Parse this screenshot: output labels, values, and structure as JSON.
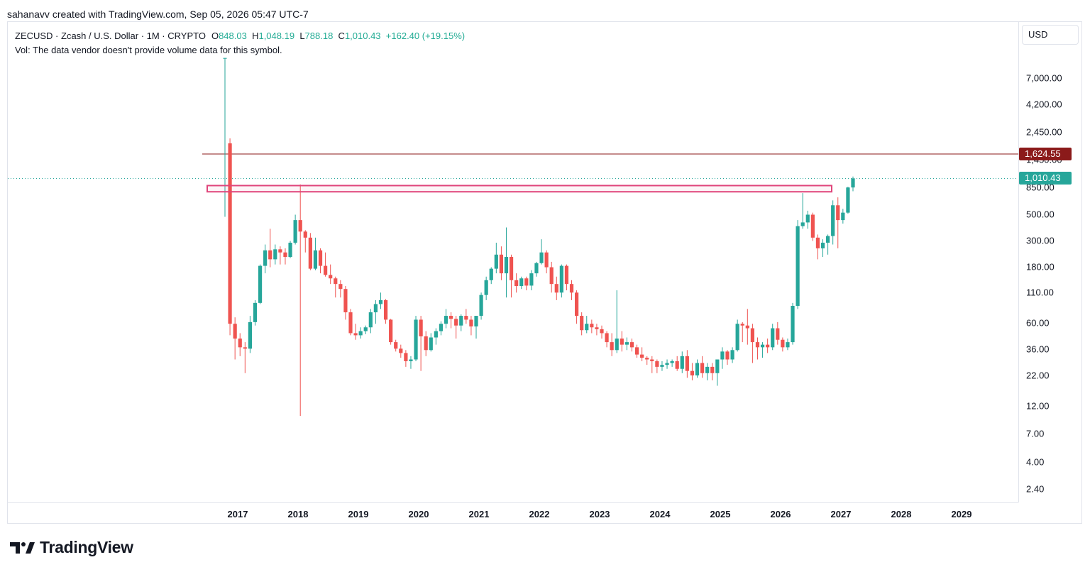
{
  "header": {
    "created_by": "sahanavv created with TradingView.com, Sep 05, 2026 05:47 UTC-7"
  },
  "legend": {
    "symbol": "ZECUSD · Zcash / U.S. Dollar · 1M · CRYPTO",
    "o_label": "O",
    "o_value": "848.03",
    "h_label": "H",
    "h_value": "1,048.19",
    "l_label": "L",
    "l_value": "788.18",
    "c_label": "C",
    "c_value": "1,010.43",
    "change": "+162.40 (+19.15%)",
    "volume_note": "Vol: The data vendor doesn't provide volume data for this symbol."
  },
  "price_axis": {
    "currency": "USD",
    "ticks": [
      "7,000.00",
      "4,200.00",
      "2,450.00",
      "1,450.00",
      "850.00",
      "500.00",
      "300.00",
      "180.00",
      "110.00",
      "60.00",
      "36.00",
      "22.00",
      "12.00",
      "7.00",
      "4.00",
      "2.40"
    ]
  },
  "badges": {
    "resistance": {
      "text": "1,624.55",
      "color": "#8b1a1a"
    },
    "last": {
      "text": "1,010.43",
      "color": "#26a69a"
    }
  },
  "time_axis": {
    "years": [
      "2017",
      "2018",
      "2019",
      "2020",
      "2021",
      "2022",
      "2023",
      "2024",
      "2025",
      "2026",
      "2027",
      "2028",
      "2029"
    ]
  },
  "brand": {
    "name": "TradingView",
    "logo": "tradingview-logo-icon"
  },
  "colors": {
    "up": "#26a69a",
    "down": "#ef5350",
    "resistance_line": "#8b1a1a",
    "zone": "#e0457b",
    "last_line": "#26a69a"
  },
  "chart_data": {
    "type": "candlestick",
    "scale": "log",
    "interval": "1M",
    "currency": "USD",
    "ylim": [
      2,
      11000
    ],
    "x_start": "2016-10",
    "levels": {
      "resistance": 1624.55,
      "last_close": 1010.43,
      "zone_low": 780,
      "zone_high": 880
    },
    "candles": [
      [
        10500,
        10500,
        480,
        10500
      ],
      [
        2000,
        2200,
        48,
        60
      ],
      [
        60,
        68,
        30,
        45
      ],
      [
        45,
        50,
        32,
        38
      ],
      [
        38,
        42,
        23,
        37
      ],
      [
        37,
        70,
        34,
        62
      ],
      [
        62,
        95,
        58,
        90
      ],
      [
        90,
        190,
        88,
        185
      ],
      [
        185,
        280,
        160,
        250
      ],
      [
        250,
        380,
        180,
        210
      ],
      [
        210,
        280,
        190,
        255
      ],
      [
        255,
        270,
        190,
        240
      ],
      [
        240,
        260,
        190,
        220
      ],
      [
        220,
        300,
        215,
        290
      ],
      [
        290,
        500,
        280,
        450
      ],
      [
        450,
        900,
        10,
        360
      ],
      [
        360,
        370,
        240,
        320
      ],
      [
        320,
        350,
        170,
        175
      ],
      [
        175,
        320,
        170,
        250
      ],
      [
        250,
        260,
        160,
        185
      ],
      [
        185,
        240,
        150,
        155
      ],
      [
        155,
        190,
        130,
        145
      ],
      [
        145,
        150,
        100,
        130
      ],
      [
        130,
        140,
        100,
        118
      ],
      [
        118,
        125,
        65,
        75
      ],
      [
        75,
        80,
        48,
        50
      ],
      [
        50,
        60,
        44,
        48
      ],
      [
        48,
        56,
        45,
        52
      ],
      [
        52,
        58,
        49,
        56
      ],
      [
        56,
        80,
        50,
        75
      ],
      [
        75,
        95,
        60,
        88
      ],
      [
        88,
        110,
        80,
        95
      ],
      [
        95,
        97,
        60,
        65
      ],
      [
        65,
        66,
        40,
        42
      ],
      [
        42,
        44,
        35,
        37
      ],
      [
        37,
        40,
        31,
        34
      ],
      [
        34,
        36,
        26,
        29
      ],
      [
        29,
        32,
        25,
        30
      ],
      [
        30,
        70,
        29,
        65
      ],
      [
        65,
        70,
        24,
        47
      ],
      [
        47,
        52,
        32,
        36
      ],
      [
        36,
        50,
        35,
        46
      ],
      [
        46,
        55,
        40,
        52
      ],
      [
        52,
        63,
        48,
        60
      ],
      [
        60,
        80,
        55,
        70
      ],
      [
        70,
        75,
        55,
        66
      ],
      [
        66,
        70,
        45,
        58
      ],
      [
        58,
        72,
        52,
        70
      ],
      [
        70,
        80,
        60,
        65
      ],
      [
        65,
        70,
        48,
        57
      ],
      [
        57,
        68,
        45,
        70
      ],
      [
        70,
        110,
        65,
        105
      ],
      [
        105,
        150,
        95,
        140
      ],
      [
        140,
        180,
        130,
        175
      ],
      [
        175,
        290,
        160,
        230
      ],
      [
        230,
        270,
        140,
        160
      ],
      [
        160,
        390,
        100,
        220
      ],
      [
        220,
        230,
        100,
        140
      ],
      [
        140,
        160,
        110,
        125
      ],
      [
        125,
        150,
        118,
        145
      ],
      [
        145,
        150,
        115,
        126
      ],
      [
        126,
        170,
        115,
        160
      ],
      [
        160,
        200,
        150,
        195
      ],
      [
        195,
        310,
        190,
        240
      ],
      [
        240,
        250,
        160,
        180
      ],
      [
        180,
        200,
        110,
        130
      ],
      [
        130,
        150,
        95,
        110
      ],
      [
        110,
        190,
        100,
        185
      ],
      [
        185,
        190,
        115,
        130
      ],
      [
        130,
        140,
        95,
        110
      ],
      [
        110,
        115,
        60,
        70
      ],
      [
        70,
        75,
        48,
        53
      ],
      [
        53,
        70,
        50,
        60
      ],
      [
        60,
        65,
        50,
        56
      ],
      [
        56,
        60,
        48,
        54
      ],
      [
        54,
        58,
        45,
        50
      ],
      [
        50,
        52,
        38,
        42
      ],
      [
        42,
        50,
        32,
        36
      ],
      [
        36,
        115,
        34,
        45
      ],
      [
        45,
        52,
        35,
        40
      ],
      [
        40,
        46,
        36,
        42
      ],
      [
        42,
        45,
        35,
        38
      ],
      [
        38,
        40,
        31,
        33
      ],
      [
        33,
        38,
        29,
        31
      ],
      [
        31,
        32,
        27,
        30
      ],
      [
        30,
        32,
        23,
        29
      ],
      [
        29,
        30,
        23,
        26
      ],
      [
        26,
        29,
        24,
        27
      ],
      [
        27,
        30,
        25,
        28
      ],
      [
        28,
        30,
        26,
        29
      ],
      [
        29,
        32,
        24,
        25
      ],
      [
        25,
        35,
        23,
        32
      ],
      [
        32,
        36,
        21,
        24
      ],
      [
        24,
        28,
        20,
        22
      ],
      [
        22,
        30,
        21,
        28
      ],
      [
        28,
        32,
        21,
        23
      ],
      [
        23,
        28,
        20,
        26
      ],
      [
        26,
        28,
        20,
        23
      ],
      [
        23,
        30,
        18,
        30
      ],
      [
        30,
        38,
        25,
        35
      ],
      [
        35,
        36,
        27,
        30
      ],
      [
        30,
        38,
        28,
        36
      ],
      [
        36,
        65,
        35,
        60
      ],
      [
        60,
        62,
        42,
        58
      ],
      [
        58,
        80,
        40,
        55
      ],
      [
        55,
        60,
        28,
        42
      ],
      [
        42,
        46,
        30,
        38
      ],
      [
        38,
        42,
        31,
        40
      ],
      [
        40,
        45,
        34,
        38
      ],
      [
        38,
        60,
        36,
        55
      ],
      [
        55,
        62,
        40,
        44
      ],
      [
        44,
        46,
        35,
        38
      ],
      [
        38,
        45,
        36,
        42
      ],
      [
        42,
        90,
        40,
        85
      ],
      [
        85,
        450,
        80,
        400
      ],
      [
        400,
        760,
        380,
        430
      ],
      [
        430,
        540,
        380,
        500
      ],
      [
        500,
        520,
        300,
        320
      ],
      [
        320,
        340,
        210,
        260
      ],
      [
        260,
        310,
        220,
        290
      ],
      [
        290,
        340,
        230,
        330
      ],
      [
        330,
        660,
        280,
        600
      ],
      [
        600,
        700,
        260,
        450
      ],
      [
        450,
        560,
        420,
        520
      ],
      [
        520,
        860,
        510,
        848
      ],
      [
        848,
        1048.19,
        788.18,
        1010.43
      ]
    ]
  }
}
